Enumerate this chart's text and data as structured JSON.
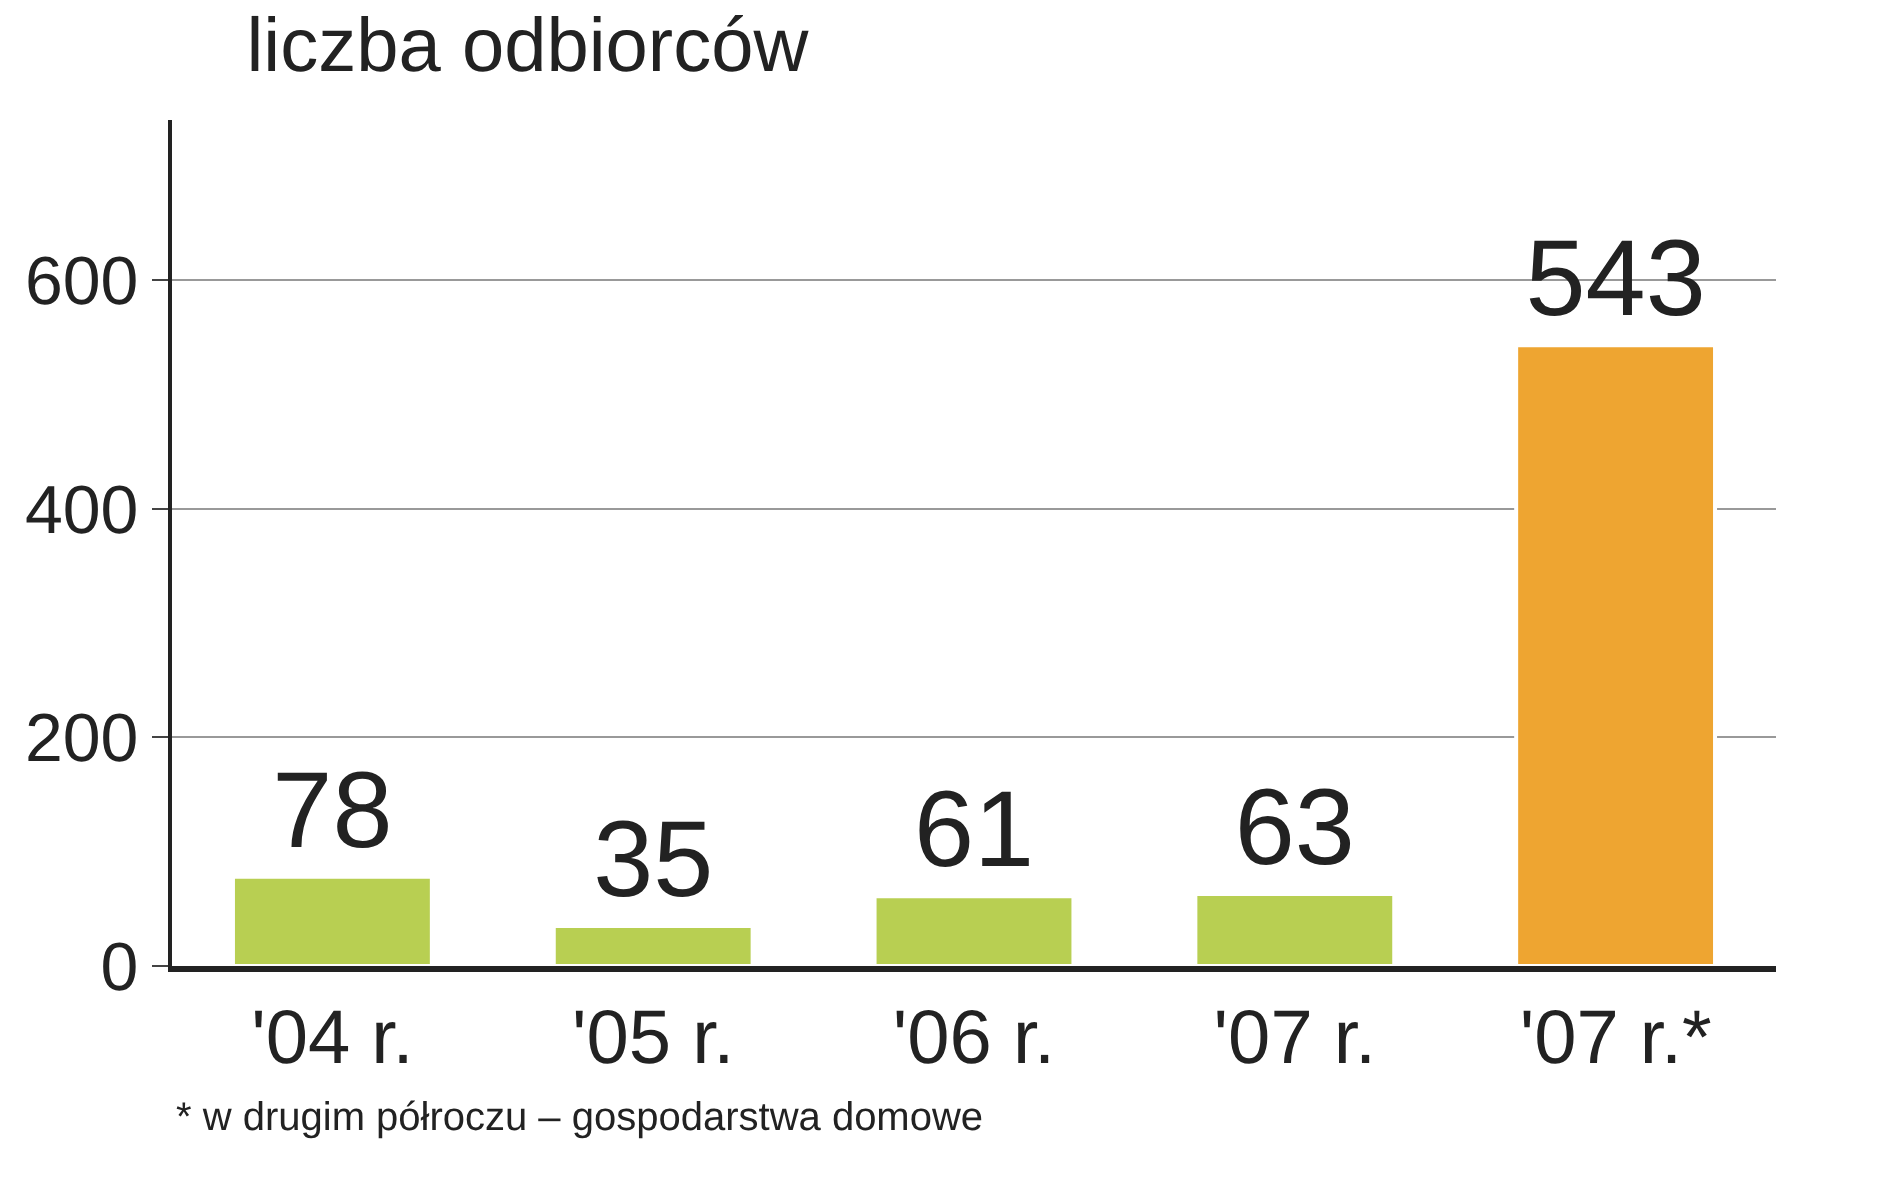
{
  "chart_data": {
    "type": "bar",
    "title": "liczba odbiorców",
    "categories": [
      "'04 r.",
      "'05 r.",
      "'06 r.",
      "'07 r.",
      "'07 r.*"
    ],
    "values": [
      78,
      35,
      61,
      63,
      543
    ],
    "colors": [
      "#b8cf52",
      "#b8cf52",
      "#b8cf52",
      "#b8cf52",
      "#eea531"
    ],
    "data_labels": true,
    "ylim": [
      0,
      740
    ],
    "yticks": [
      0,
      200,
      400,
      600
    ],
    "grid": "y",
    "annotations": [
      "* w drugim półroczu – gospodarstwa domowe"
    ]
  }
}
